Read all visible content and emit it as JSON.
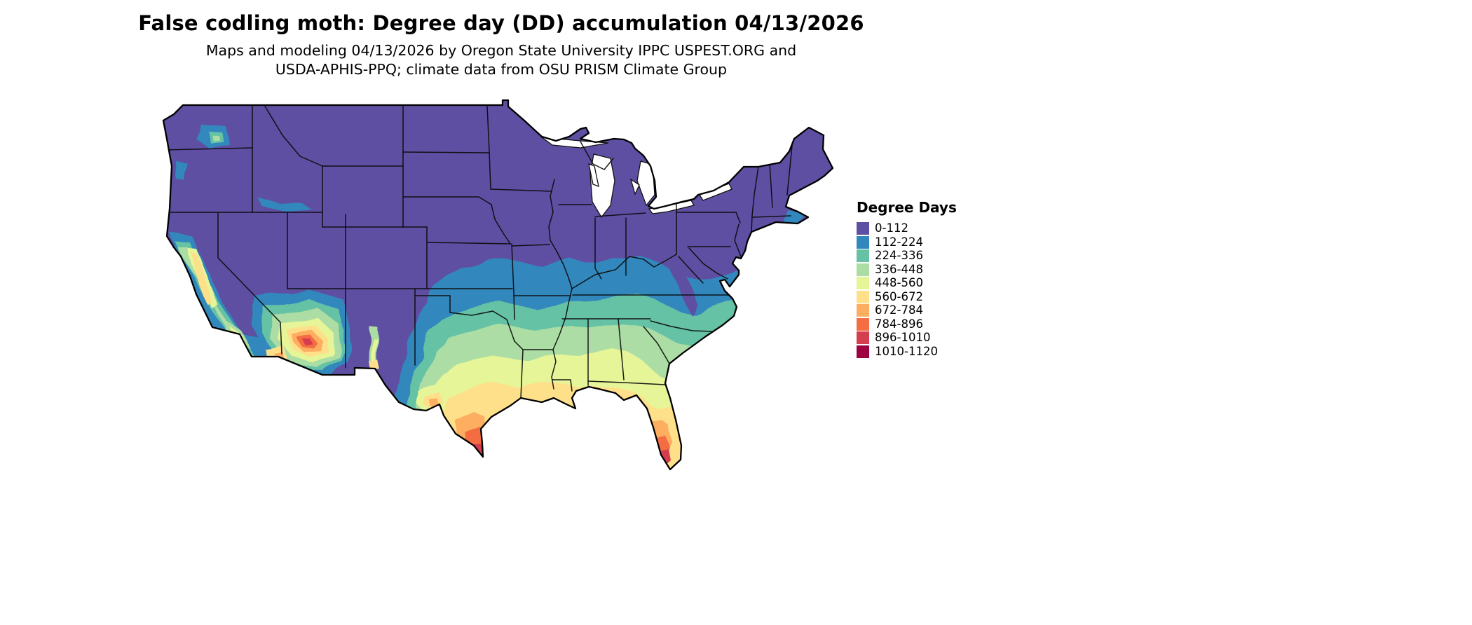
{
  "title": "False codling moth: Degree day (DD) accumulation 04/13/2026",
  "subtitle": {
    "line1": "Maps and modeling 04/13/2026 by Oregon State University IPPC USPEST.ORG and",
    "line2": "USDA-APHIS-PPQ; climate data from OSU PRISM Climate Group"
  },
  "legend": {
    "title": "Degree Days",
    "items": [
      {
        "label": "0-112",
        "color": "#5e4fa2"
      },
      {
        "label": "112-224",
        "color": "#3288bd"
      },
      {
        "label": "224-336",
        "color": "#66c2a5"
      },
      {
        "label": "336-448",
        "color": "#abdda4"
      },
      {
        "label": "448-560",
        "color": "#e6f598"
      },
      {
        "label": "560-672",
        "color": "#fee08b"
      },
      {
        "label": "672-784",
        "color": "#fdae61"
      },
      {
        "label": "784-896",
        "color": "#f46d43"
      },
      {
        "label": "896-1010",
        "color": "#d53e4f"
      },
      {
        "label": "1010-1120",
        "color": "#9e0142"
      }
    ]
  },
  "map": {
    "region": "Contiguous United States",
    "coldest_band": "0-112",
    "hottest_band": "1010-1120",
    "hot_spots": [
      "southern Arizona",
      "southern Texas",
      "southern Florida"
    ],
    "cold_region": "northern states and Rocky Mountains"
  }
}
